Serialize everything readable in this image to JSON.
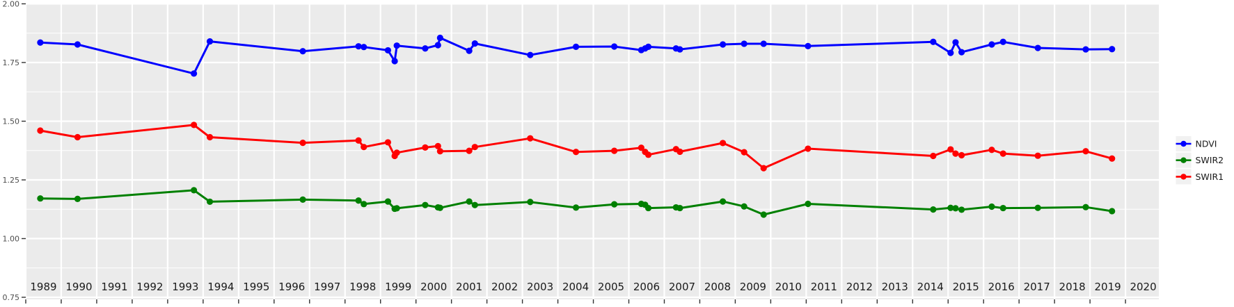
{
  "chart_data": {
    "type": "line",
    "title": "",
    "xlabel": "",
    "ylabel": "",
    "grid": true,
    "legend_position": "right-outside",
    "x_axis": {
      "domain": [
        1989.0,
        2020.94
      ],
      "tick_years": [
        1989,
        1990,
        1991,
        1992,
        1993,
        1994,
        1995,
        1996,
        1997,
        1998,
        1999,
        2000,
        2001,
        2002,
        2003,
        2004,
        2005,
        2006,
        2007,
        2008,
        2009,
        2010,
        2011,
        2012,
        2013,
        2014,
        2015,
        2016,
        2017,
        2018,
        2019,
        2020
      ],
      "tick_labels": [
        "1989",
        "1990",
        "1991",
        "1992",
        "1993",
        "1994",
        "1995",
        "1996",
        "1997",
        "1998",
        "1999",
        "2000",
        "2001",
        "2002",
        "2003",
        "2004",
        "2005",
        "2006",
        "2007",
        "2008",
        "2009",
        "2010",
        "2011",
        "2012",
        "2013",
        "2014",
        "2015",
        "2016",
        "2017",
        "2018",
        "2019",
        "2020"
      ]
    },
    "y_axis": {
      "domain": [
        0.75,
        2.0
      ],
      "ticks": [
        2.0,
        1.75,
        1.5,
        1.25,
        1.0,
        0.75
      ],
      "tick_labels": [
        "2.00",
        "1.75",
        "1.50",
        "1.25",
        "1.00",
        "0.75"
      ],
      "minor_ticks": [
        0.875,
        1.125,
        1.375,
        1.625,
        1.875
      ]
    },
    "x": [
      1989.41,
      1990.46,
      1993.74,
      1994.19,
      1996.81,
      1998.38,
      1998.53,
      1999.21,
      1999.4,
      1999.46,
      2000.26,
      2000.62,
      2000.68,
      2001.5,
      2001.66,
      2003.22,
      2004.51,
      2005.59,
      2006.35,
      2006.46,
      2006.55,
      2007.33,
      2007.44,
      2008.65,
      2009.25,
      2009.8,
      2011.05,
      2014.58,
      2015.07,
      2015.21,
      2015.38,
      2016.23,
      2016.55,
      2017.53,
      2018.88,
      2019.62
    ],
    "series": [
      {
        "name": "NDVI",
        "color": "#0000FF",
        "values": [
          1.835,
          1.827,
          1.703,
          1.84,
          1.798,
          1.819,
          1.816,
          1.802,
          1.756,
          1.822,
          1.81,
          1.824,
          1.855,
          1.8,
          1.831,
          1.782,
          1.817,
          1.818,
          1.803,
          1.81,
          1.817,
          1.81,
          1.806,
          1.827,
          1.83,
          1.83,
          1.82,
          1.838,
          1.791,
          1.836,
          1.794,
          1.827,
          1.838,
          1.812,
          1.806,
          1.807
        ]
      },
      {
        "name": "SWIR2",
        "color": "#008000",
        "values": [
          1.171,
          1.169,
          1.206,
          1.157,
          1.166,
          1.162,
          1.147,
          1.158,
          1.127,
          1.129,
          1.143,
          1.133,
          1.131,
          1.158,
          1.143,
          1.156,
          1.132,
          1.146,
          1.148,
          1.144,
          1.13,
          1.133,
          1.13,
          1.158,
          1.137,
          1.102,
          1.148,
          1.124,
          1.131,
          1.129,
          1.123,
          1.136,
          1.13,
          1.131,
          1.134,
          1.117
        ]
      },
      {
        "name": "SWIR1",
        "color": "#FF0000",
        "values": [
          1.46,
          1.432,
          1.484,
          1.432,
          1.408,
          1.418,
          1.39,
          1.41,
          1.352,
          1.366,
          1.388,
          1.394,
          1.372,
          1.374,
          1.39,
          1.427,
          1.369,
          1.374,
          1.387,
          1.369,
          1.357,
          1.381,
          1.37,
          1.407,
          1.368,
          1.3,
          1.383,
          1.352,
          1.38,
          1.362,
          1.355,
          1.378,
          1.362,
          1.353,
          1.372,
          1.341
        ]
      }
    ],
    "legend": {
      "entries": [
        "NDVI",
        "SWIR2",
        "SWIR1"
      ]
    }
  },
  "colors": {
    "background": "#FFFFFF",
    "panel": "#EBEBEB",
    "gridline": "#FFFFFF",
    "legend_key_box": "#F1F1F1",
    "y_axis_text": "#4D4D4D",
    "x_axis_text": "#1A1A1A",
    "tick_mark": "#333333",
    "legend_text": "#1A1A1A"
  }
}
